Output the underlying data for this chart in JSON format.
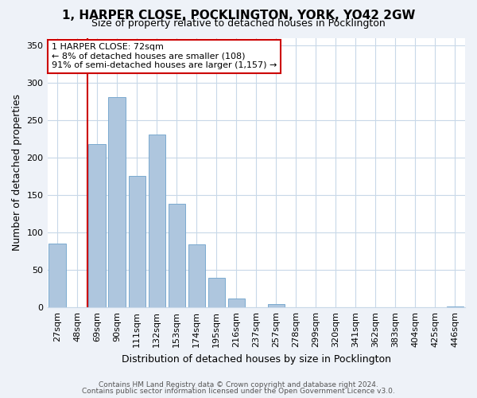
{
  "title": "1, HARPER CLOSE, POCKLINGTON, YORK, YO42 2GW",
  "subtitle": "Size of property relative to detached houses in Pocklington",
  "xlabel": "Distribution of detached houses by size in Pocklington",
  "ylabel": "Number of detached properties",
  "bar_labels": [
    "27sqm",
    "48sqm",
    "69sqm",
    "90sqm",
    "111sqm",
    "132sqm",
    "153sqm",
    "174sqm",
    "195sqm",
    "216sqm",
    "237sqm",
    "257sqm",
    "278sqm",
    "299sqm",
    "320sqm",
    "341sqm",
    "362sqm",
    "383sqm",
    "404sqm",
    "425sqm",
    "446sqm"
  ],
  "bar_values": [
    85,
    0,
    218,
    281,
    176,
    231,
    138,
    84,
    40,
    12,
    0,
    4,
    0,
    0,
    0,
    0,
    0,
    0,
    0,
    0,
    1
  ],
  "bar_color": "#aec6de",
  "bar_edge_color": "#7baad0",
  "vline_color": "#cc0000",
  "vline_x_index": 2,
  "ylim": [
    0,
    360
  ],
  "yticks": [
    0,
    50,
    100,
    150,
    200,
    250,
    300,
    350
  ],
  "annotation_title": "1 HARPER CLOSE: 72sqm",
  "annotation_line1": "← 8% of detached houses are smaller (108)",
  "annotation_line2": "91% of semi-detached houses are larger (1,157) →",
  "footer1": "Contains HM Land Registry data © Crown copyright and database right 2024.",
  "footer2": "Contains public sector information licensed under the Open Government Licence v3.0.",
  "bg_color": "#eef2f8",
  "plot_bg_color": "#ffffff",
  "grid_color": "#c8d8e8",
  "title_fontsize": 11,
  "subtitle_fontsize": 9,
  "ylabel_fontsize": 9,
  "xlabel_fontsize": 9,
  "tick_fontsize": 8,
  "annotation_fontsize": 8,
  "footer_fontsize": 6.5
}
